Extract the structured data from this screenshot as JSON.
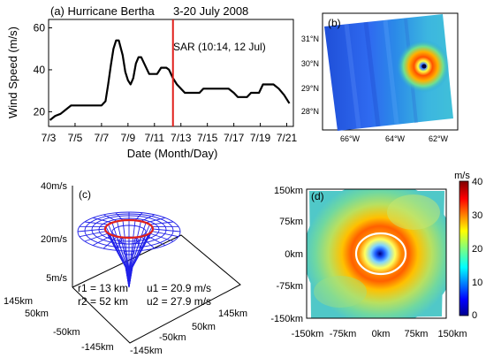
{
  "panel_a": {
    "label": "(a) Hurricane Bertha",
    "dates": "3-20 July 2008",
    "sar_label": "SAR (10:14, 12 Jul)",
    "ylabel": "Wind Speed (m/s)",
    "xlabel": "Date (Month/Day)"
  },
  "panel_b": {
    "label": "(b)",
    "lat_ticks": [
      "31°N",
      "30°N",
      "29°N",
      "28°N"
    ],
    "lon_ticks": [
      "66°W",
      "64°W",
      "62°W"
    ]
  },
  "panel_c": {
    "label": "(c)",
    "z_ticks": [
      "40m/s",
      "20m/s",
      "5m/s"
    ],
    "x_ticks": [
      "145km",
      "50km",
      "-50km",
      "-145km"
    ],
    "y_ticks": [
      "145km",
      "50km",
      "-50km",
      "-145km"
    ],
    "r1": "r1 = 13 km",
    "r2": "r2 = 52 km",
    "u1": "u1 = 20.9 m/s",
    "u2": "u2 = 27.9 m/s"
  },
  "panel_d": {
    "label": "(d)",
    "y_ticks": [
      "150km",
      "75km",
      "0km",
      "-75km",
      "-150km"
    ],
    "x_ticks": [
      "-150km",
      "-75km",
      "0km",
      "75km",
      "150km"
    ],
    "colorbar_unit": "m/s",
    "colorbar_ticks": [
      "40",
      "30",
      "20",
      "10",
      "0"
    ]
  },
  "chart_data": {
    "type": "line",
    "title": "(a) Hurricane Bertha 3-20 July 2008",
    "xlabel": "Date (Month/Day)",
    "ylabel": "Wind Speed (m/s)",
    "x_tick_labels": [
      "7/3",
      "7/5",
      "7/7",
      "7/9",
      "7/11",
      "7/13",
      "7/15",
      "7/17",
      "7/19",
      "7/21"
    ],
    "y_ticks": [
      20,
      40,
      60
    ],
    "xlim": [
      3,
      21.5
    ],
    "ylim": [
      13,
      64
    ],
    "series": [
      {
        "x": [
          3.1,
          3.5,
          3.9,
          4.3,
          4.7,
          5.2,
          5.7,
          6.2,
          6.6,
          7.0,
          7.3,
          7.5,
          7.7,
          7.9,
          8.1,
          8.3,
          8.6,
          8.8,
          9.0,
          9.2,
          9.4,
          9.6,
          9.8,
          10.0,
          10.3,
          10.6,
          10.9,
          11.2,
          11.5,
          11.9,
          12.1,
          12.4,
          12.7,
          13.0,
          13.3,
          13.6,
          14.0,
          14.4,
          14.7,
          15.0,
          15.4,
          15.8,
          16.2,
          16.6,
          17.0,
          17.3,
          17.6,
          18.0,
          18.3,
          18.6,
          18.9,
          19.2,
          19.6,
          20.0,
          20.4,
          20.8,
          21.2
        ],
        "y": [
          16,
          18,
          19,
          21,
          23,
          23,
          23,
          23,
          23,
          23,
          25,
          33,
          42,
          50,
          54,
          54,
          47,
          39,
          35,
          33,
          36,
          43,
          46,
          46,
          42,
          38,
          38,
          38,
          41,
          41,
          40,
          36,
          33,
          31,
          29,
          29,
          29,
          29,
          31,
          31,
          31,
          31,
          31,
          31,
          29,
          27,
          27,
          27,
          29,
          29,
          29,
          33,
          33,
          33,
          31,
          28,
          24
        ]
      }
    ],
    "markers": [
      {
        "x": 12.4,
        "label": "SAR (10:14, 12 Jul)"
      }
    ]
  }
}
